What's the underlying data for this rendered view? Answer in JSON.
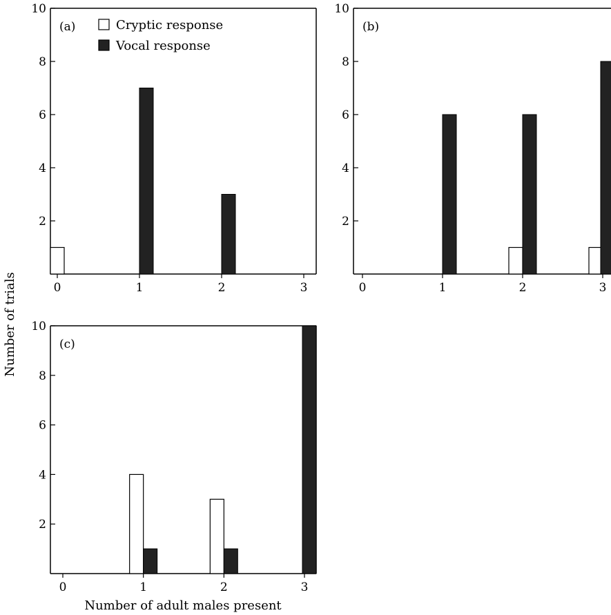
{
  "colors": {
    "cryptic_fill": "#ffffff",
    "vocal_fill": "#222222",
    "axis": "#000000"
  },
  "ylabel": "Number of trials",
  "xlabel": "Number of adult males present",
  "legend": [
    {
      "name": "Cryptic response",
      "swatch": "open-square"
    },
    {
      "name": "Vocal response",
      "swatch": "filled-square"
    }
  ],
  "chart_data": [
    {
      "type": "bar",
      "panel": "(a)",
      "categories": [
        "0",
        "1",
        "2",
        "3"
      ],
      "x": [
        0,
        1,
        2,
        3
      ],
      "xlim": [
        0,
        3
      ],
      "ylim": [
        0,
        10
      ],
      "yticks": [
        2,
        4,
        6,
        8,
        10
      ],
      "series": [
        {
          "name": "Cryptic response",
          "values": [
            1,
            0,
            0,
            0
          ]
        },
        {
          "name": "Vocal response",
          "values": [
            0,
            7,
            3,
            0
          ]
        }
      ],
      "legend_position": "top-left"
    },
    {
      "type": "bar",
      "panel": "(b)",
      "categories": [
        "0",
        "1",
        "2",
        "3"
      ],
      "x": [
        0,
        1,
        2,
        3
      ],
      "xlim": [
        0,
        3
      ],
      "ylim": [
        0,
        10
      ],
      "yticks": [
        2,
        4,
        6,
        8,
        10
      ],
      "series": [
        {
          "name": "Cryptic response",
          "values": [
            0,
            0,
            1,
            1
          ]
        },
        {
          "name": "Vocal response",
          "values": [
            0,
            6,
            6,
            8
          ]
        }
      ]
    },
    {
      "type": "bar",
      "panel": "(c)",
      "categories": [
        "0",
        "1",
        "2",
        "3"
      ],
      "x": [
        0,
        1,
        2,
        3
      ],
      "xlim": [
        0,
        3
      ],
      "ylim": [
        0,
        10
      ],
      "yticks": [
        2,
        4,
        6,
        8,
        10
      ],
      "series": [
        {
          "name": "Cryptic response",
          "values": [
            0,
            4,
            3,
            0
          ]
        },
        {
          "name": "Vocal response",
          "values": [
            0,
            1,
            1,
            10
          ]
        }
      ]
    }
  ]
}
